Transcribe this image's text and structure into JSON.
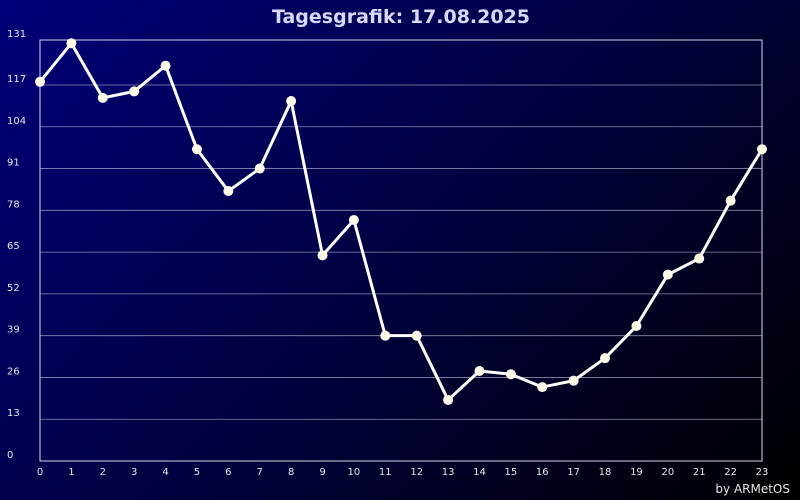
{
  "chart_data": {
    "type": "line",
    "title": "Tagesgrafik: 17.08.2025",
    "credit": "by ARMetOS",
    "x": [
      "0",
      "1",
      "2",
      "3",
      "4",
      "5",
      "6",
      "7",
      "8",
      "9",
      "10",
      "11",
      "12",
      "13",
      "14",
      "15",
      "16",
      "17",
      "18",
      "19",
      "20",
      "21",
      "22",
      "23"
    ],
    "series": [
      {
        "values": [
          118,
          130,
          113,
          115,
          123,
          97,
          84,
          91,
          112,
          64,
          75,
          39,
          39,
          19,
          28,
          27,
          23,
          25,
          32,
          42,
          58,
          63,
          81,
          97
        ]
      }
    ],
    "yticks": [
      "0",
      "13",
      "26",
      "39",
      "52",
      "65",
      "78",
      "91",
      "104",
      "117",
      "131"
    ],
    "ylim": [
      0,
      131
    ],
    "grid": true,
    "colors": {
      "line": "#ffffff",
      "marker": "#fffbe8",
      "grid": "#b8b8d8"
    }
  }
}
